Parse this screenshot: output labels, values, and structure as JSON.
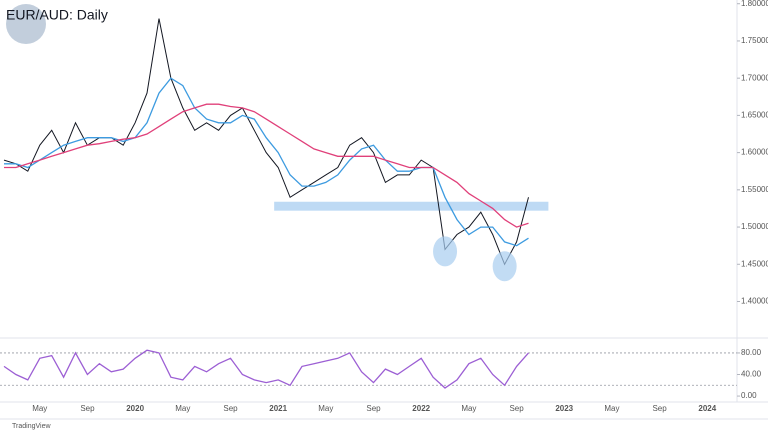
{
  "chart_data": {
    "type": "line",
    "title": "EUR/AUD: Daily",
    "watermark": "TradingView",
    "categories": [
      null,
      null,
      null,
      "May",
      null,
      null,
      null,
      "Sep",
      null,
      null,
      null,
      "2020",
      null,
      null,
      null,
      "May",
      null,
      null,
      null,
      "Sep",
      null,
      null,
      null,
      "2021",
      null,
      null,
      null,
      "May",
      null,
      null,
      null,
      "Sep",
      null,
      null,
      null,
      "2022",
      null,
      null,
      null,
      "May",
      null,
      null,
      null,
      "Sep",
      null,
      null,
      null,
      "2023",
      null,
      null,
      null,
      "May",
      null,
      null,
      null,
      "Sep",
      null,
      null,
      null,
      "2024",
      null,
      null
    ],
    "series": [
      {
        "color": "#131722",
        "values": [
          1.59,
          1.585,
          1.575,
          1.61,
          1.63,
          1.6,
          1.64,
          1.61,
          1.62,
          1.62,
          1.61,
          1.64,
          1.68,
          1.78,
          1.7,
          1.66,
          1.63,
          1.64,
          1.63,
          1.65,
          1.66,
          1.63,
          1.6,
          1.58,
          1.54,
          1.55,
          1.56,
          1.57,
          1.58,
          1.61,
          1.62,
          1.6,
          1.56,
          1.57,
          1.57,
          1.59,
          1.58,
          1.47,
          1.49,
          1.5,
          1.52,
          1.49,
          1.45,
          1.48,
          1.54,
          null,
          null,
          null,
          null,
          null,
          null,
          null,
          null,
          null,
          null,
          null,
          null,
          null,
          null,
          null,
          null,
          null
        ]
      },
      {
        "color": "#3d9be0",
        "values": [
          1.585,
          1.585,
          1.58,
          1.59,
          1.6,
          1.61,
          1.615,
          1.62,
          1.62,
          1.62,
          1.615,
          1.62,
          1.64,
          1.68,
          1.7,
          1.69,
          1.66,
          1.645,
          1.64,
          1.64,
          1.65,
          1.645,
          1.62,
          1.6,
          1.57,
          1.555,
          1.555,
          1.56,
          1.57,
          1.59,
          1.605,
          1.61,
          1.59,
          1.575,
          1.575,
          1.58,
          1.58,
          1.54,
          1.51,
          1.49,
          1.5,
          1.5,
          1.48,
          1.475,
          1.485,
          null,
          null,
          null,
          null,
          null,
          null,
          null,
          null,
          null,
          null,
          null,
          null,
          null,
          null,
          null,
          null,
          null
        ]
      },
      {
        "color": "#e0407a",
        "values": [
          1.58,
          1.58,
          1.585,
          1.59,
          1.595,
          1.6,
          1.605,
          1.61,
          1.612,
          1.615,
          1.618,
          1.62,
          1.625,
          1.635,
          1.645,
          1.655,
          1.66,
          1.665,
          1.665,
          1.662,
          1.66,
          1.655,
          1.645,
          1.635,
          1.625,
          1.615,
          1.605,
          1.6,
          1.595,
          1.595,
          1.595,
          1.595,
          1.59,
          1.585,
          1.58,
          1.58,
          1.58,
          1.57,
          1.56,
          1.545,
          1.535,
          1.525,
          1.51,
          1.5,
          1.505,
          null,
          null,
          null,
          null,
          null,
          null,
          null,
          null,
          null,
          null,
          null,
          null,
          null,
          null,
          null,
          null,
          null
        ]
      },
      {
        "color": "#9c5fd4",
        "axis": "y2",
        "values": [
          55,
          40,
          30,
          70,
          75,
          35,
          80,
          40,
          60,
          45,
          50,
          70,
          85,
          80,
          35,
          30,
          55,
          45,
          60,
          70,
          40,
          30,
          25,
          30,
          20,
          55,
          60,
          65,
          70,
          80,
          45,
          25,
          50,
          40,
          55,
          70,
          35,
          15,
          30,
          60,
          70,
          40,
          20,
          55,
          80,
          null,
          null,
          null,
          null,
          null,
          null,
          null,
          null,
          null,
          null,
          null,
          null,
          null,
          null,
          null,
          null,
          null
        ]
      }
    ],
    "support_zone": [
      1.522,
      1.534
    ],
    "ylim": [
      1.355,
      1.805
    ],
    "yticks": [
      {
        "value": 1.4,
        "label": "1.40000"
      },
      {
        "value": 1.45,
        "label": "1.45000"
      },
      {
        "value": 1.5,
        "label": "1.50000"
      },
      {
        "value": 1.55,
        "label": "1.55000"
      },
      {
        "value": 1.6,
        "label": "1.60000"
      },
      {
        "value": 1.65,
        "label": "1.65000"
      },
      {
        "value": 1.7,
        "label": "1.70000"
      },
      {
        "value": 1.75,
        "label": "1.75000"
      },
      {
        "value": 1.8,
        "label": "1.80000"
      }
    ],
    "y2lim": [
      -11,
      104
    ],
    "y2ticks": [
      {
        "value": 0,
        "label": "0.00"
      },
      {
        "value": 40,
        "label": "40.00"
      },
      {
        "value": 80,
        "label": "80.00"
      }
    ],
    "y2levels": [
      20,
      80
    ]
  }
}
